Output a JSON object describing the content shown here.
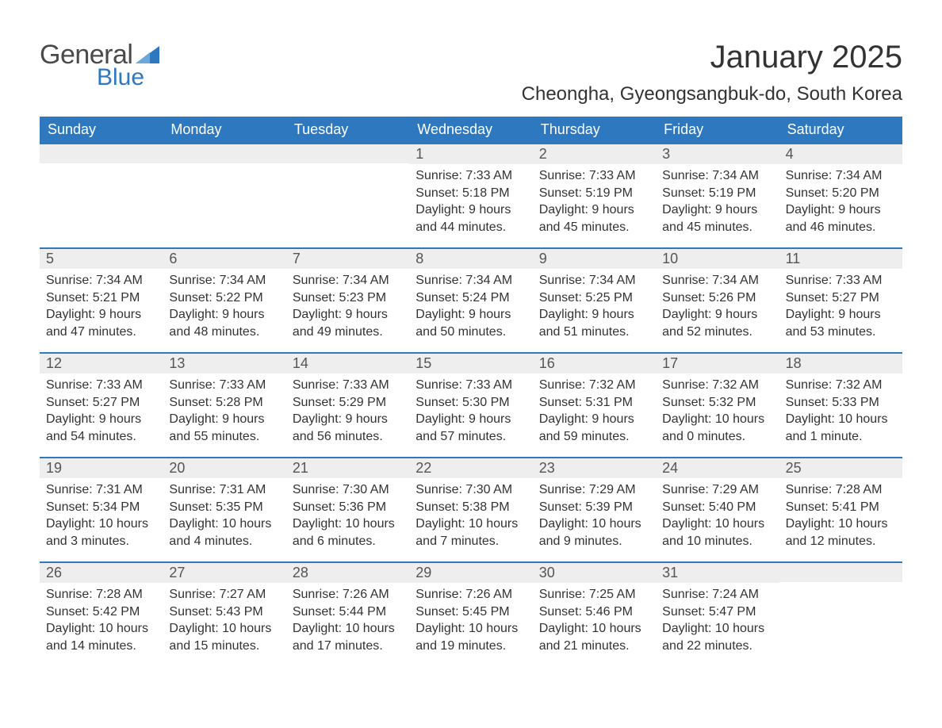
{
  "logo": {
    "general": "General",
    "blue": "Blue"
  },
  "header": {
    "title": "January 2025",
    "location": "Cheongha, Gyeongsangbuk-do, South Korea"
  },
  "colors": {
    "brand_blue": "#2e78c0",
    "header_gray": "#eeeeee",
    "text": "#333333",
    "logo_gray": "#4a4a4a",
    "background": "#ffffff"
  },
  "calendar": {
    "type": "table",
    "columns": 7,
    "rows": 5,
    "day_font_size_pt": 14,
    "body_font_size_pt": 12,
    "days_of_week": [
      "Sunday",
      "Monday",
      "Tuesday",
      "Wednesday",
      "Thursday",
      "Friday",
      "Saturday"
    ],
    "leading_blanks": 3,
    "days": [
      {
        "n": "1",
        "sunrise": "Sunrise: 7:33 AM",
        "sunset": "Sunset: 5:18 PM",
        "day1": "Daylight: 9 hours",
        "day2": "and 44 minutes."
      },
      {
        "n": "2",
        "sunrise": "Sunrise: 7:33 AM",
        "sunset": "Sunset: 5:19 PM",
        "day1": "Daylight: 9 hours",
        "day2": "and 45 minutes."
      },
      {
        "n": "3",
        "sunrise": "Sunrise: 7:34 AM",
        "sunset": "Sunset: 5:19 PM",
        "day1": "Daylight: 9 hours",
        "day2": "and 45 minutes."
      },
      {
        "n": "4",
        "sunrise": "Sunrise: 7:34 AM",
        "sunset": "Sunset: 5:20 PM",
        "day1": "Daylight: 9 hours",
        "day2": "and 46 minutes."
      },
      {
        "n": "5",
        "sunrise": "Sunrise: 7:34 AM",
        "sunset": "Sunset: 5:21 PM",
        "day1": "Daylight: 9 hours",
        "day2": "and 47 minutes."
      },
      {
        "n": "6",
        "sunrise": "Sunrise: 7:34 AM",
        "sunset": "Sunset: 5:22 PM",
        "day1": "Daylight: 9 hours",
        "day2": "and 48 minutes."
      },
      {
        "n": "7",
        "sunrise": "Sunrise: 7:34 AM",
        "sunset": "Sunset: 5:23 PM",
        "day1": "Daylight: 9 hours",
        "day2": "and 49 minutes."
      },
      {
        "n": "8",
        "sunrise": "Sunrise: 7:34 AM",
        "sunset": "Sunset: 5:24 PM",
        "day1": "Daylight: 9 hours",
        "day2": "and 50 minutes."
      },
      {
        "n": "9",
        "sunrise": "Sunrise: 7:34 AM",
        "sunset": "Sunset: 5:25 PM",
        "day1": "Daylight: 9 hours",
        "day2": "and 51 minutes."
      },
      {
        "n": "10",
        "sunrise": "Sunrise: 7:34 AM",
        "sunset": "Sunset: 5:26 PM",
        "day1": "Daylight: 9 hours",
        "day2": "and 52 minutes."
      },
      {
        "n": "11",
        "sunrise": "Sunrise: 7:33 AM",
        "sunset": "Sunset: 5:27 PM",
        "day1": "Daylight: 9 hours",
        "day2": "and 53 minutes."
      },
      {
        "n": "12",
        "sunrise": "Sunrise: 7:33 AM",
        "sunset": "Sunset: 5:27 PM",
        "day1": "Daylight: 9 hours",
        "day2": "and 54 minutes."
      },
      {
        "n": "13",
        "sunrise": "Sunrise: 7:33 AM",
        "sunset": "Sunset: 5:28 PM",
        "day1": "Daylight: 9 hours",
        "day2": "and 55 minutes."
      },
      {
        "n": "14",
        "sunrise": "Sunrise: 7:33 AM",
        "sunset": "Sunset: 5:29 PM",
        "day1": "Daylight: 9 hours",
        "day2": "and 56 minutes."
      },
      {
        "n": "15",
        "sunrise": "Sunrise: 7:33 AM",
        "sunset": "Sunset: 5:30 PM",
        "day1": "Daylight: 9 hours",
        "day2": "and 57 minutes."
      },
      {
        "n": "16",
        "sunrise": "Sunrise: 7:32 AM",
        "sunset": "Sunset: 5:31 PM",
        "day1": "Daylight: 9 hours",
        "day2": "and 59 minutes."
      },
      {
        "n": "17",
        "sunrise": "Sunrise: 7:32 AM",
        "sunset": "Sunset: 5:32 PM",
        "day1": "Daylight: 10 hours",
        "day2": "and 0 minutes."
      },
      {
        "n": "18",
        "sunrise": "Sunrise: 7:32 AM",
        "sunset": "Sunset: 5:33 PM",
        "day1": "Daylight: 10 hours",
        "day2": "and 1 minute."
      },
      {
        "n": "19",
        "sunrise": "Sunrise: 7:31 AM",
        "sunset": "Sunset: 5:34 PM",
        "day1": "Daylight: 10 hours",
        "day2": "and 3 minutes."
      },
      {
        "n": "20",
        "sunrise": "Sunrise: 7:31 AM",
        "sunset": "Sunset: 5:35 PM",
        "day1": "Daylight: 10 hours",
        "day2": "and 4 minutes."
      },
      {
        "n": "21",
        "sunrise": "Sunrise: 7:30 AM",
        "sunset": "Sunset: 5:36 PM",
        "day1": "Daylight: 10 hours",
        "day2": "and 6 minutes."
      },
      {
        "n": "22",
        "sunrise": "Sunrise: 7:30 AM",
        "sunset": "Sunset: 5:38 PM",
        "day1": "Daylight: 10 hours",
        "day2": "and 7 minutes."
      },
      {
        "n": "23",
        "sunrise": "Sunrise: 7:29 AM",
        "sunset": "Sunset: 5:39 PM",
        "day1": "Daylight: 10 hours",
        "day2": "and 9 minutes."
      },
      {
        "n": "24",
        "sunrise": "Sunrise: 7:29 AM",
        "sunset": "Sunset: 5:40 PM",
        "day1": "Daylight: 10 hours",
        "day2": "and 10 minutes."
      },
      {
        "n": "25",
        "sunrise": "Sunrise: 7:28 AM",
        "sunset": "Sunset: 5:41 PM",
        "day1": "Daylight: 10 hours",
        "day2": "and 12 minutes."
      },
      {
        "n": "26",
        "sunrise": "Sunrise: 7:28 AM",
        "sunset": "Sunset: 5:42 PM",
        "day1": "Daylight: 10 hours",
        "day2": "and 14 minutes."
      },
      {
        "n": "27",
        "sunrise": "Sunrise: 7:27 AM",
        "sunset": "Sunset: 5:43 PM",
        "day1": "Daylight: 10 hours",
        "day2": "and 15 minutes."
      },
      {
        "n": "28",
        "sunrise": "Sunrise: 7:26 AM",
        "sunset": "Sunset: 5:44 PM",
        "day1": "Daylight: 10 hours",
        "day2": "and 17 minutes."
      },
      {
        "n": "29",
        "sunrise": "Sunrise: 7:26 AM",
        "sunset": "Sunset: 5:45 PM",
        "day1": "Daylight: 10 hours",
        "day2": "and 19 minutes."
      },
      {
        "n": "30",
        "sunrise": "Sunrise: 7:25 AM",
        "sunset": "Sunset: 5:46 PM",
        "day1": "Daylight: 10 hours",
        "day2": "and 21 minutes."
      },
      {
        "n": "31",
        "sunrise": "Sunrise: 7:24 AM",
        "sunset": "Sunset: 5:47 PM",
        "day1": "Daylight: 10 hours",
        "day2": "and 22 minutes."
      }
    ],
    "trailing_blanks": 1
  }
}
